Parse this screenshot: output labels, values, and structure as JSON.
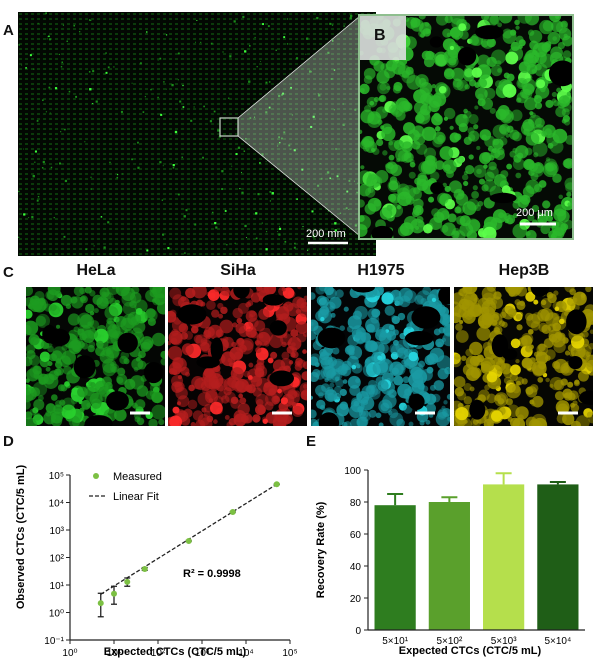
{
  "panels": {
    "a": {
      "label": "A",
      "scale_bar": "200 mm"
    },
    "b": {
      "label": "B",
      "scale_bar": "200 μm"
    },
    "c": {
      "label": "C",
      "cells": [
        {
          "name": "HeLa",
          "color": "#29d12e"
        },
        {
          "name": "SiHa",
          "color": "#ff2a2a"
        },
        {
          "name": "H1975",
          "color": "#26d6e0"
        },
        {
          "name": "Hep3B",
          "color": "#e6d400"
        }
      ]
    },
    "d": {
      "label": "D"
    },
    "e": {
      "label": "E"
    }
  },
  "chart_data": [
    {
      "type": "scatter",
      "xlabel": "Expected CTCs (CTC/5 mL)",
      "ylabel": "Observed CTCs (CTC/5 mL)",
      "x_scale": "log",
      "y_scale": "log",
      "xlim": [
        1,
        100000
      ],
      "ylim": [
        0.1,
        100000
      ],
      "x_ticks": [
        "10⁰",
        "10¹",
        "10²",
        "10³",
        "10⁴",
        "10⁵"
      ],
      "y_ticks": [
        "10⁻¹",
        "10⁰",
        "10¹",
        "10²",
        "10³",
        "10⁴",
        "10⁵"
      ],
      "legend": {
        "position": "top-left",
        "entries": [
          "Measured",
          "Linear Fit"
        ]
      },
      "annotation": "R² = 0.9998",
      "marker_color": "#7cc043",
      "series": [
        {
          "name": "Measured",
          "points": [
            {
              "x": 5,
              "y": 2.2,
              "err_low": 0.7,
              "err_high": 5
            },
            {
              "x": 10,
              "y": 4.8,
              "err_low": 2,
              "err_high": 9
            },
            {
              "x": 20,
              "y": 13,
              "err_low": 9,
              "err_high": 18
            },
            {
              "x": 50,
              "y": 38,
              "err_low": 34,
              "err_high": 43
            },
            {
              "x": 500,
              "y": 400,
              "err_low": 380,
              "err_high": 420
            },
            {
              "x": 5000,
              "y": 4500,
              "err_low": 4300,
              "err_high": 4700
            },
            {
              "x": 50000,
              "y": 46000,
              "err_low": 45000,
              "err_high": 47000
            }
          ]
        },
        {
          "name": "Linear Fit",
          "line": [
            [
              5,
              4.6
            ],
            [
              50000,
              46000
            ]
          ]
        }
      ]
    },
    {
      "type": "bar",
      "xlabel": "Expected CTCs (CTC/5 mL)",
      "ylabel": "Recovery Rate (%)",
      "ylim": [
        0,
        100
      ],
      "y_ticks": [
        0,
        20,
        40,
        60,
        80,
        100
      ],
      "categories": [
        "5×10¹",
        "5×10²",
        "5×10³",
        "5×10⁴"
      ],
      "values": [
        78,
        80,
        91,
        91
      ],
      "errors": [
        7,
        3,
        7,
        1.5
      ],
      "colors": [
        "#2e7d1f",
        "#5aa02c",
        "#b5df4c",
        "#1f5e17"
      ]
    }
  ]
}
